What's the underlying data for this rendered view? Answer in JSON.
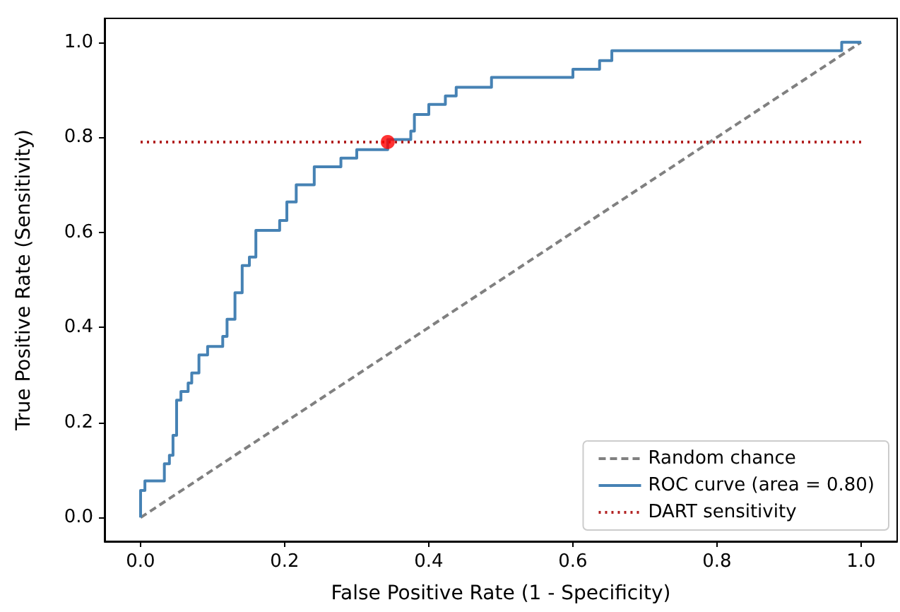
{
  "chart_data": {
    "type": "step",
    "xlabel": "False Positive Rate (1 - Specificity)",
    "ylabel": "True Positive Rate (Sensitivity)",
    "xlim": [
      -0.05,
      1.05
    ],
    "ylim": [
      -0.05,
      1.05
    ],
    "xticks": [
      {
        "value": 0,
        "label": "0.0"
      },
      0.2,
      0.4,
      0.6,
      0.8,
      {
        "value": 1,
        "label": "1.0"
      }
    ],
    "yticks": [
      {
        "value": 0,
        "label": "0.0"
      },
      0.2,
      0.4,
      0.6,
      0.8,
      {
        "value": 1,
        "label": "1.0"
      }
    ],
    "grid": false,
    "legend": "bottom right",
    "series": [
      {
        "name": "Random chance",
        "type": "line",
        "color": "#808080",
        "line_style": "dashed",
        "x": [
          0,
          1
        ],
        "values": [
          0,
          1
        ]
      },
      {
        "name": "ROC curve (area = 0.80)",
        "color": "#4682b4",
        "line_style": "solid",
        "x": [
          0,
          0,
          0.006,
          0.033,
          0.04,
          0.045,
          0.05,
          0.056,
          0.066,
          0.071,
          0.081,
          0.093,
          0.114,
          0.12,
          0.131,
          0.141,
          0.151,
          0.16,
          0.193,
          0.203,
          0.216,
          0.241,
          0.278,
          0.3,
          0.343,
          0.375,
          0.38,
          0.4,
          0.423,
          0.438,
          0.487,
          0.6,
          0.637,
          0.654,
          0.973,
          1
        ],
        "values": [
          0,
          0.057,
          0.077,
          0.113,
          0.131,
          0.173,
          0.247,
          0.265,
          0.283,
          0.304,
          0.342,
          0.36,
          0.381,
          0.417,
          0.473,
          0.53,
          0.548,
          0.604,
          0.625,
          0.664,
          0.7,
          0.738,
          0.756,
          0.774,
          0.795,
          0.813,
          0.848,
          0.869,
          0.887,
          0.905,
          0.926,
          0.943,
          0.961,
          0.982,
          1.0,
          1.0
        ]
      },
      {
        "name": "DART sensitivity",
        "type": "line",
        "color": "#b22222",
        "line_style": "dotted",
        "x": [
          0,
          1
        ],
        "values": [
          0.79,
          0.79
        ]
      },
      {
        "type": "scatter",
        "color": "#ff0000",
        "marker": "circle",
        "x": [
          0.343
        ],
        "values": [
          0.79
        ]
      }
    ]
  }
}
